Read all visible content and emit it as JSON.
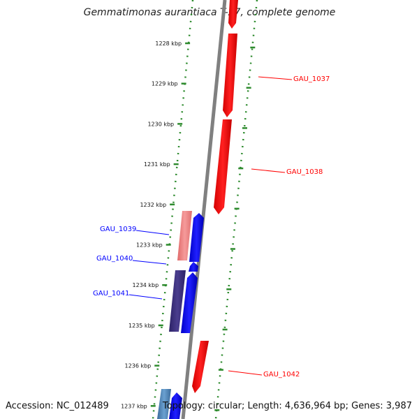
{
  "title": "Gemmatimonas aurantiaca T-27, complete genome",
  "accession": "Accession: NC_012489",
  "topology": "Topology: circular; Length: 4,636,964 bp; Genes: 3,987",
  "colors": {
    "forward": "#ff0000",
    "reverse": "#0000ff",
    "ruler": "#2e8b2e",
    "backbone": "#808080",
    "pink": "#f08080",
    "navy": "#3b2f7a",
    "steel": "#4f84b8"
  },
  "ticks": [
    "1228 kbp",
    "1229 kbp",
    "1230 kbp",
    "1231 kbp",
    "1232 kbp",
    "1233 kbp",
    "1234 kbp",
    "1235 kbp",
    "1236 kbp",
    "1237 kbp"
  ],
  "gene_labels": [
    {
      "text": "GAU_1037",
      "strand": "forward"
    },
    {
      "text": "GAU_1038",
      "strand": "forward"
    },
    {
      "text": "GAU_1039",
      "strand": "reverse"
    },
    {
      "text": "GAU_1040",
      "strand": "reverse"
    },
    {
      "text": "GAU_1041",
      "strand": "reverse"
    },
    {
      "text": "GAU_1042",
      "strand": "forward"
    }
  ]
}
